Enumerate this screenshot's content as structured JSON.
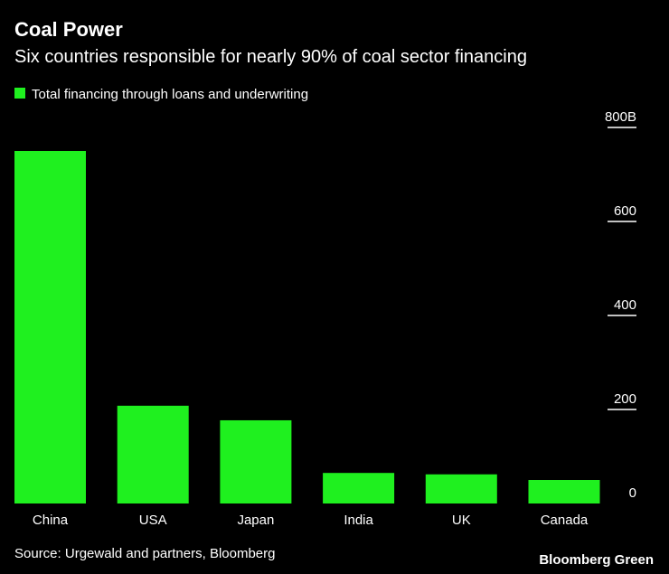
{
  "chart_data": {
    "type": "bar",
    "title": "Coal Power",
    "subtitle": "Six countries responsible for nearly 90% of coal sector financing",
    "legend": "Total financing through loans and underwriting",
    "categories": [
      "China",
      "USA",
      "Japan",
      "India",
      "UK",
      "Canada"
    ],
    "values": [
      750,
      208,
      177,
      65,
      62,
      50
    ],
    "color": "#1ff01f",
    "ylim": [
      0,
      800
    ],
    "yticks": [
      0,
      200,
      400,
      600,
      {
        "value": 800,
        "label": "800B"
      }
    ],
    "source": "Source: Urgewald and partners, Bloomberg",
    "brand": "Bloomberg Green"
  }
}
